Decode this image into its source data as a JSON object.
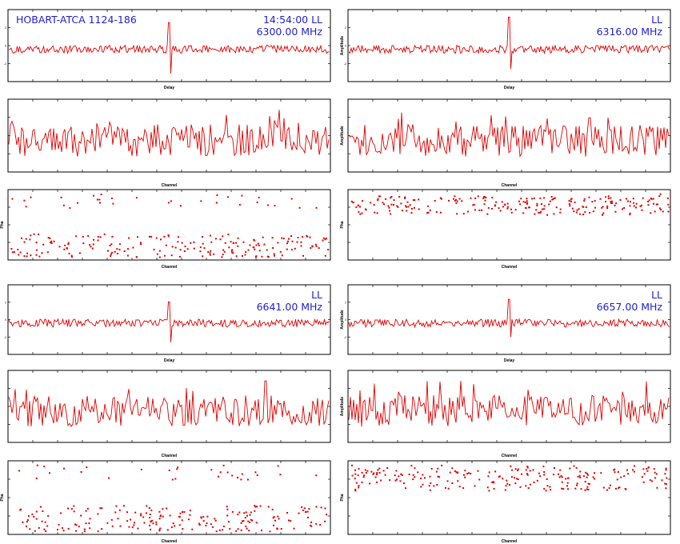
{
  "colors": {
    "trace": "#e00000",
    "annotation": "#1f1fd0",
    "frame": "#000000"
  },
  "header": {
    "baseline_title": "HOBART-ATCA 1124-186"
  },
  "groups": [
    {
      "col": 0,
      "row": 0,
      "time": "14:54:00",
      "pol": "LL",
      "freq": "6300.00 MHz",
      "delay": {
        "xlabel": "Delay",
        "ylabel": "",
        "spike_up": 58,
        "spike_down": 68,
        "seed": 11
      },
      "amp": {
        "xlabel": "Channel",
        "ylabel": "",
        "seed": 21,
        "peak_pos": 0.84,
        "peak": 1.0
      },
      "phase": {
        "xlabel": "Channel",
        "ylabel": "Pha",
        "seed": 31,
        "band_lo": 0.62,
        "band_hi": 0.95,
        "upper_frac": 0.15
      }
    },
    {
      "col": 1,
      "row": 0,
      "time": "",
      "pol": "LL",
      "freq": "6316.00 MHz",
      "delay": {
        "xlabel": "Delay",
        "ylabel": "Amplitude",
        "spike_up": 80,
        "spike_down": 55,
        "seed": 12
      },
      "amp": {
        "xlabel": "Channel",
        "ylabel": "Amplitude",
        "seed": 22,
        "peak_pos": 0.75,
        "peak": 0.85
      },
      "phase": {
        "xlabel": "Channel",
        "ylabel": "Pha",
        "seed": 32,
        "band_lo": 0.08,
        "band_hi": 0.35,
        "upper_frac": 0.15
      }
    },
    {
      "col": 0,
      "row": 1,
      "time": "",
      "pol": "LL",
      "freq": "6641.00 MHz",
      "delay": {
        "xlabel": "Delay",
        "ylabel": "",
        "spike_up": 40,
        "spike_down": 55,
        "seed": 13
      },
      "amp": {
        "xlabel": "Channel",
        "ylabel": "",
        "seed": 23,
        "peak_pos": 0.8,
        "peak": 1.0
      },
      "phase": {
        "xlabel": "Channel",
        "ylabel": "Pha",
        "seed": 33,
        "band_lo": 0.6,
        "band_hi": 0.95,
        "upper_frac": 0.15
      }
    },
    {
      "col": 1,
      "row": 1,
      "time": "",
      "pol": "LL",
      "freq": "6657.00 MHz",
      "delay": {
        "xlabel": "Delay",
        "ylabel": "Amplitude",
        "spike_up": 50,
        "spike_down": 40,
        "seed": 14
      },
      "amp": {
        "xlabel": "Channel",
        "ylabel": "Amplitude",
        "seed": 24,
        "peak_pos": 0.35,
        "peak": 1.0
      },
      "phase": {
        "xlabel": "Channel",
        "ylabel": "Pha",
        "seed": 34,
        "band_lo": 0.08,
        "band_hi": 0.4,
        "upper_frac": 0.15
      }
    }
  ],
  "chart_data": {
    "type": "line",
    "description_series": [
      "Delay",
      "Amplitude vs Channel",
      "Phase vs Channel"
    ]
  }
}
